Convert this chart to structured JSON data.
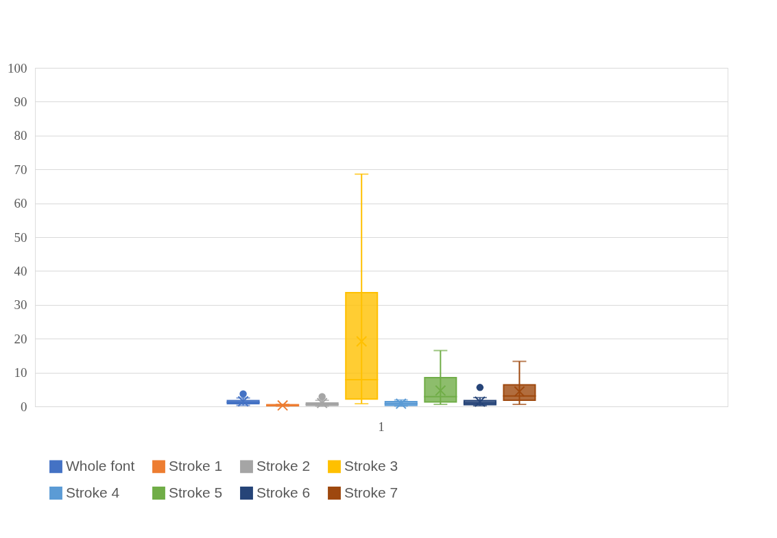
{
  "chart_data": {
    "type": "box",
    "categories": [
      "1"
    ],
    "ylim": [
      0,
      100
    ],
    "yticks": [
      0,
      10,
      20,
      30,
      40,
      50,
      60,
      70,
      80,
      90,
      100
    ],
    "grid": "y",
    "legend": "bottom",
    "series": [
      {
        "name": "Whole font",
        "color": "#4472c4",
        "boxes": [
          {
            "low": 0.3,
            "q1": 0.8,
            "median": 1.2,
            "q3": 1.7,
            "high": 2.5,
            "mean": 1.5,
            "outliers": [
              3.7
            ]
          }
        ]
      },
      {
        "name": "Stroke 1",
        "color": "#ed7d31",
        "boxes": [
          {
            "low": 0.1,
            "q1": 0.2,
            "median": 0.3,
            "q3": 0.5,
            "high": 0.6,
            "mean": 0.3
          }
        ]
      },
      {
        "name": "Stroke 2",
        "color": "#a5a5a5",
        "boxes": [
          {
            "low": 0.1,
            "q1": 0.3,
            "median": 0.6,
            "q3": 1.0,
            "high": 1.8,
            "mean": 1.0,
            "outliers": [
              2.9
            ]
          }
        ]
      },
      {
        "name": "Stroke 3",
        "color": "#ffc000",
        "boxes": [
          {
            "low": 0.8,
            "q1": 2.2,
            "median": 7.9,
            "q3": 33.6,
            "high": 68.6,
            "mean": 19.2
          }
        ]
      },
      {
        "name": "Stroke 4",
        "color": "#5b9bd5",
        "boxes": [
          {
            "low": 0.1,
            "q1": 0.3,
            "median": 0.8,
            "q3": 1.4,
            "high": 1.9,
            "mean": 0.8
          }
        ]
      },
      {
        "name": "Stroke 5",
        "color": "#70ad47",
        "boxes": [
          {
            "low": 0.6,
            "q1": 1.3,
            "median": 2.9,
            "q3": 8.5,
            "high": 16.5,
            "mean": 4.7
          }
        ]
      },
      {
        "name": "Stroke 6",
        "color": "#264478",
        "boxes": [
          {
            "low": 0.2,
            "q1": 0.5,
            "median": 1.0,
            "q3": 1.7,
            "high": 2.6,
            "mean": 1.4,
            "outliers": [
              5.6
            ]
          }
        ]
      },
      {
        "name": "Stroke 7",
        "color": "#9e480e",
        "boxes": [
          {
            "low": 0.6,
            "q1": 1.8,
            "median": 3.1,
            "q3": 6.4,
            "high": 13.3,
            "mean": 4.4
          }
        ]
      }
    ]
  }
}
